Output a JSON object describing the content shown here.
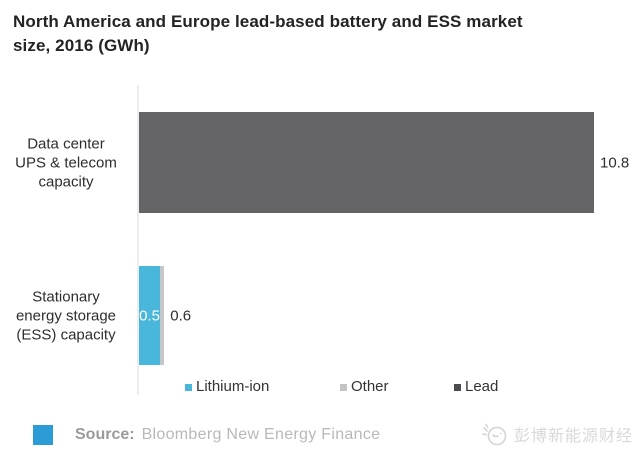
{
  "title_lines": [
    "North America and Europe lead-based battery and ESS market",
    "size, 2016 (GWh)"
  ],
  "chart_data": {
    "type": "bar",
    "orientation": "horizontal",
    "title": "North America and Europe lead-based battery and ESS market size, 2016 (GWh)",
    "unit": "GWh",
    "categories": [
      "Data center UPS & telecom capacity",
      "Stationary energy storage (ESS) capacity"
    ],
    "category_label_lines": [
      [
        "Data center",
        "UPS & telecom",
        "capacity"
      ],
      [
        "Stationary",
        "energy storage",
        "(ESS) capacity"
      ]
    ],
    "series": [
      {
        "name": "Lithium-ion",
        "color": "#49b7db",
        "values": [
          0,
          0.5
        ]
      },
      {
        "name": "Other",
        "color": "#c7c7c7",
        "values": [
          0,
          0.1
        ]
      },
      {
        "name": "Lead",
        "color": "#646467",
        "values": [
          10.8,
          0
        ]
      }
    ],
    "value_labels": [
      {
        "category_index": 0,
        "text": "10.8",
        "placement": "outside-end",
        "color": "#2f2f2f"
      },
      {
        "category_index": 1,
        "text": "0.5",
        "placement": "inside-segment-0",
        "color": "#ffffff"
      },
      {
        "category_index": 1,
        "text": "0.6",
        "placement": "outside-end",
        "color": "#2f2f2f"
      }
    ],
    "xlim": [
      0,
      10.8
    ],
    "grid": false,
    "legend_position": "bottom"
  },
  "legend": {
    "items": [
      {
        "label": "Lithium-ion",
        "color": "#49b7db"
      },
      {
        "label": "Other",
        "color": "#c4c4c4"
      },
      {
        "label": "Lead",
        "color": "#4b4b4f"
      }
    ]
  },
  "source": {
    "prefix": "Source:",
    "text": "Bloomberg New Energy Finance",
    "bullet_color": "#2b9cd6"
  },
  "watermark": {
    "text": "彭博新能源财经"
  }
}
